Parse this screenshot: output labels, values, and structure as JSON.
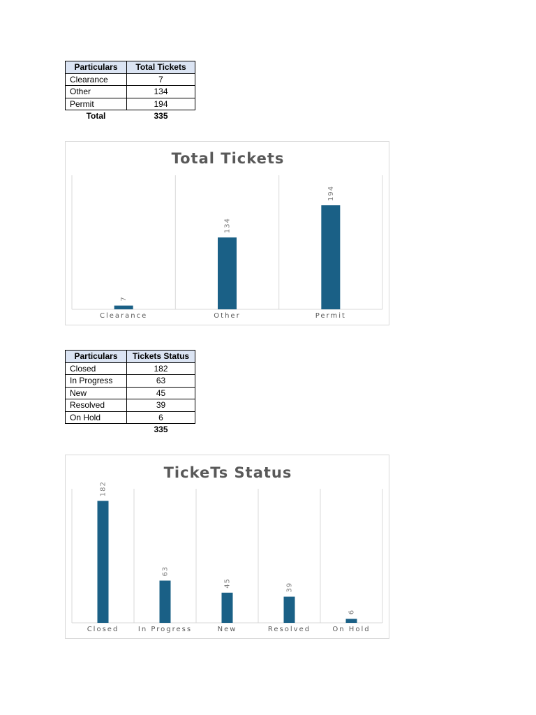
{
  "table1": {
    "headers": [
      "Particulars",
      "Total Tickets"
    ],
    "rows": [
      {
        "label": "Clearance",
        "value": "7"
      },
      {
        "label": "Other",
        "value": "134"
      },
      {
        "label": "Permit",
        "value": "194"
      }
    ],
    "total_label": "Total",
    "total_value": "335"
  },
  "table2": {
    "headers": [
      "Particulars",
      "Tickets Status"
    ],
    "rows": [
      {
        "label": "Closed",
        "value": "182"
      },
      {
        "label": "In Progress",
        "value": "63"
      },
      {
        "label": "New",
        "value": "45"
      },
      {
        "label": "Resolved",
        "value": "39"
      },
      {
        "label": "On Hold",
        "value": "6"
      }
    ],
    "total_value": "335"
  },
  "colors": {
    "bar": "#1a6086",
    "grid": "#d9d9d9",
    "header_fill": "#dbe4f3"
  },
  "chart_data": [
    {
      "type": "bar",
      "title": "Total Tickets",
      "categories": [
        "Clearance",
        "Other",
        "Permit"
      ],
      "values": [
        7,
        134,
        194
      ],
      "data_labels": [
        "7",
        "134",
        "194"
      ],
      "ylim": [
        0,
        250
      ],
      "grid": "vertical category separators",
      "legend": "none"
    },
    {
      "type": "bar",
      "title": "TickeTs Status",
      "categories": [
        "Closed",
        "In Progress",
        "New",
        "Resolved",
        "On Hold"
      ],
      "values": [
        182,
        63,
        45,
        39,
        6
      ],
      "data_labels": [
        "182",
        "63",
        "45",
        "39",
        "6"
      ],
      "ylim": [
        0,
        200
      ],
      "grid": "vertical category separators",
      "legend": "none"
    }
  ]
}
